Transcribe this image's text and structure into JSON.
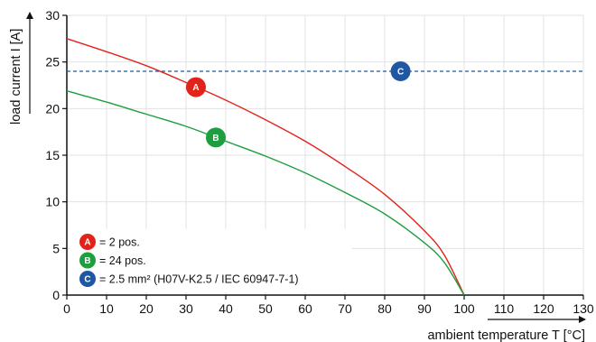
{
  "chart_data": {
    "type": "line",
    "xlabel": "ambient temperature T [°C]",
    "ylabel": "load current I [A]",
    "xlim": [
      0,
      130
    ],
    "ylim": [
      0,
      30
    ],
    "x_ticks": [
      0,
      10,
      20,
      30,
      40,
      50,
      60,
      70,
      80,
      90,
      100,
      110,
      120,
      130
    ],
    "y_ticks": [
      0,
      5,
      10,
      15,
      20,
      25,
      30
    ],
    "grid": true,
    "legend_position": "bottom-left",
    "series": [
      {
        "marker_label": "A",
        "legend_text": "= 2 pos.",
        "color": "#e2231a",
        "style": "solid",
        "x": [
          0,
          10,
          20,
          30,
          40,
          50,
          60,
          70,
          80,
          90,
          95,
          100
        ],
        "y": [
          27.5,
          26.1,
          24.6,
          22.8,
          20.9,
          18.8,
          16.5,
          13.8,
          10.8,
          6.9,
          4.3,
          0
        ],
        "marker_position": [
          32.5,
          22.3
        ]
      },
      {
        "marker_label": "B",
        "legend_text": "= 24 pos.",
        "color": "#1e9e3e",
        "style": "solid",
        "x": [
          0,
          10,
          20,
          30,
          40,
          50,
          60,
          70,
          80,
          90,
          95,
          100
        ],
        "y": [
          21.9,
          20.7,
          19.4,
          18.1,
          16.5,
          14.9,
          13.1,
          11.0,
          8.7,
          5.6,
          3.5,
          0
        ],
        "marker_position": [
          37.5,
          16.9
        ]
      },
      {
        "marker_label": "C",
        "legend_text": "= 2.5 mm² (H07V-K2.5 / IEC 60947-7-1)",
        "color": "#1f57a5",
        "style": "dashed",
        "x": [
          0,
          130
        ],
        "y": [
          24,
          24
        ],
        "marker_position": [
          84,
          24
        ]
      }
    ]
  }
}
